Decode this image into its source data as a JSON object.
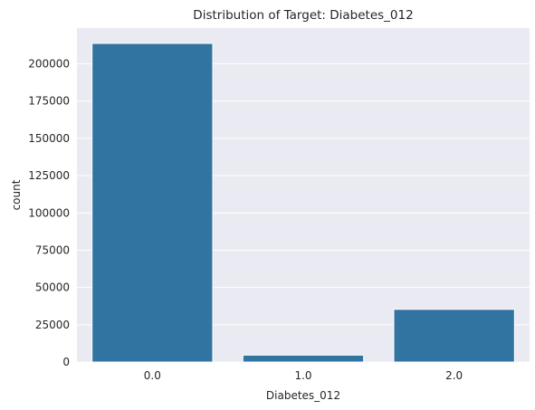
{
  "chart_data": {
    "type": "bar",
    "title": "Distribution of Target: Diabetes_012",
    "xlabel": "Diabetes_012",
    "ylabel": "count",
    "categories": [
      "0.0",
      "1.0",
      "2.0"
    ],
    "values": [
      213703,
      4631,
      35346
    ],
    "ylim": [
      0,
      224000
    ],
    "yticks": [
      0,
      25000,
      50000,
      75000,
      100000,
      125000,
      150000,
      175000,
      200000
    ],
    "grid": true,
    "legend": "none",
    "colors": {
      "bar": "#3274a1",
      "plot_background": "#eaeaf2",
      "grid": "#ffffff",
      "text": "#262626"
    }
  }
}
